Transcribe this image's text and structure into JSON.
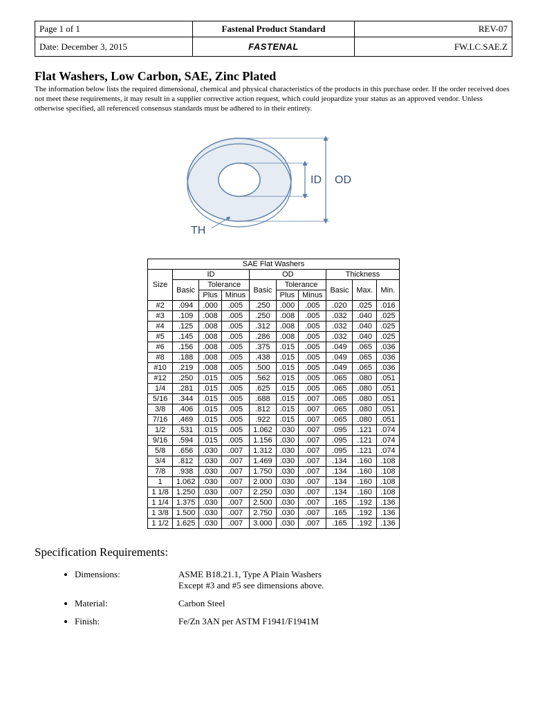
{
  "header": {
    "page": "Page 1 of 1",
    "std": "Fastenal Product Standard",
    "rev": "REV-07",
    "date": "Date: December 3, 2015",
    "logo": "FASTENAL",
    "code": "FW.LC.SAE.Z"
  },
  "title": "Flat Washers, Low Carbon, SAE, Zinc Plated",
  "intro": "The information below lists the required dimensional, chemical and physical characteristics of the products in this purchase order.  If the order received does not meet these requirements, it may result in a supplier corrective action request, which could jeopardize your status as an approved vendor.  Unless otherwise specified, all referenced consensus standards must be adhered to in their entirety.",
  "diagram": {
    "labels": {
      "id": "ID",
      "od": "OD",
      "th": "TH"
    },
    "colors": {
      "stroke": "#5b7da6",
      "fill_outer": "#e5ecf3",
      "fill_inner": "#ffffff"
    }
  },
  "table": {
    "caption": "SAE Flat Washers",
    "groups": [
      "ID",
      "OD",
      "Thickness"
    ],
    "sub": {
      "size": "Size",
      "basic": "Basic",
      "tol": "Tolerance",
      "plus": "Plus",
      "minus": "Minus",
      "max": "Max.",
      "min": "Min."
    },
    "rows": [
      {
        "s": "#2",
        "idb": ".094",
        "idp": ".000",
        "idm": ".005",
        "odb": ".250",
        "odp": ".000",
        "odm": ".005",
        "tb": ".020",
        "tx": ".025",
        "tn": ".016"
      },
      {
        "s": "#3",
        "idb": ".109",
        "idp": ".008",
        "idm": ".005",
        "odb": ".250",
        "odp": ".008",
        "odm": ".005",
        "tb": ".032",
        "tx": ".040",
        "tn": ".025"
      },
      {
        "s": "#4",
        "idb": ".125",
        "idp": ".008",
        "idm": ".005",
        "odb": ".312",
        "odp": ".008",
        "odm": ".005",
        "tb": ".032",
        "tx": ".040",
        "tn": ".025"
      },
      {
        "s": "#5",
        "idb": ".145",
        "idp": ".008",
        "idm": ".005",
        "odb": ".286",
        "odp": ".008",
        "odm": ".005",
        "tb": ".032",
        "tx": ".040",
        "tn": ".025"
      },
      {
        "s": "#6",
        "idb": ".156",
        "idp": ".008",
        "idm": ".005",
        "odb": ".375",
        "odp": ".015",
        "odm": ".005",
        "tb": ".049",
        "tx": ".065",
        "tn": ".036"
      },
      {
        "s": "#8",
        "idb": ".188",
        "idp": ".008",
        "idm": ".005",
        "odb": ".438",
        "odp": ".015",
        "odm": ".005",
        "tb": ".049",
        "tx": ".065",
        "tn": ".036"
      },
      {
        "s": "#10",
        "idb": ".219",
        "idp": ".008",
        "idm": ".005",
        "odb": ".500",
        "odp": ".015",
        "odm": ".005",
        "tb": ".049",
        "tx": ".065",
        "tn": ".036"
      },
      {
        "s": "#12",
        "idb": ".250",
        "idp": ".015",
        "idm": ".005",
        "odb": ".562",
        "odp": ".015",
        "odm": ".005",
        "tb": ".065",
        "tx": ".080",
        "tn": ".051"
      },
      {
        "s": "1/4",
        "idb": ".281",
        "idp": ".015",
        "idm": ".005",
        "odb": ".625",
        "odp": ".015",
        "odm": ".005",
        "tb": ".065",
        "tx": ".080",
        "tn": ".051"
      },
      {
        "s": "5/16",
        "idb": ".344",
        "idp": ".015",
        "idm": ".005",
        "odb": ".688",
        "odp": ".015",
        "odm": ".007",
        "tb": ".065",
        "tx": ".080",
        "tn": ".051"
      },
      {
        "s": "3/8",
        "idb": ".406",
        "idp": ".015",
        "idm": ".005",
        "odb": ".812",
        "odp": ".015",
        "odm": ".007",
        "tb": ".065",
        "tx": ".080",
        "tn": ".051"
      },
      {
        "s": "7/16",
        "idb": ".469",
        "idp": ".015",
        "idm": ".005",
        "odb": ".922",
        "odp": ".015",
        "odm": ".007",
        "tb": ".065",
        "tx": ".080",
        "tn": ".051"
      },
      {
        "s": "1/2",
        "idb": ".531",
        "idp": ".015",
        "idm": ".005",
        "odb": "1.062",
        "odp": ".030",
        "odm": ".007",
        "tb": ".095",
        "tx": ".121",
        "tn": ".074"
      },
      {
        "s": "9/16",
        "idb": ".594",
        "idp": ".015",
        "idm": ".005",
        "odb": "1.156",
        "odp": ".030",
        "odm": ".007",
        "tb": ".095",
        "tx": ".121",
        "tn": ".074"
      },
      {
        "s": "5/8",
        "idb": ".656",
        "idp": ".030",
        "idm": ".007",
        "odb": "1.312",
        "odp": ".030",
        "odm": ".007",
        "tb": ".095",
        "tx": ".121",
        "tn": ".074"
      },
      {
        "s": "3/4",
        "idb": ".812",
        "idp": ".030",
        "idm": ".007",
        "odb": "1.469",
        "odp": ".030",
        "odm": ".007",
        "tb": ".134",
        "tx": ".160",
        "tn": ".108"
      },
      {
        "s": "7/8",
        "idb": ".938",
        "idp": ".030",
        "idm": ".007",
        "odb": "1.750",
        "odp": ".030",
        "odm": ".007",
        "tb": ".134",
        "tx": ".160",
        "tn": ".108"
      },
      {
        "s": "1",
        "idb": "1.062",
        "idp": ".030",
        "idm": ".007",
        "odb": "2.000",
        "odp": ".030",
        "odm": ".007",
        "tb": ".134",
        "tx": ".160",
        "tn": ".108"
      },
      {
        "s": "1 1/8",
        "idb": "1.250",
        "idp": ".030",
        "idm": ".007",
        "odb": "2.250",
        "odp": ".030",
        "odm": ".007",
        "tb": ".134",
        "tx": ".160",
        "tn": ".108"
      },
      {
        "s": "1 1/4",
        "idb": "1.375",
        "idp": ".030",
        "idm": ".007",
        "odb": "2.500",
        "odp": ".030",
        "odm": ".007",
        "tb": ".165",
        "tx": ".192",
        "tn": ".136"
      },
      {
        "s": "1 3/8",
        "idb": "1.500",
        "idp": ".030",
        "idm": ".007",
        "odb": "2.750",
        "odp": ".030",
        "odm": ".007",
        "tb": ".165",
        "tx": ".192",
        "tn": ".136"
      },
      {
        "s": "1 1/2",
        "idb": "1.625",
        "idp": ".030",
        "idm": ".007",
        "odb": "3.000",
        "odp": ".030",
        "odm": ".007",
        "tb": ".165",
        "tx": ".192",
        "tn": ".136"
      }
    ]
  },
  "spec": {
    "heading": "Specification Requirements:",
    "items": [
      {
        "label": "Dimensions:",
        "value": "ASME B18.21.1, Type A Plain Washers\nExcept #3 and #5 see dimensions above."
      },
      {
        "label": "Material:",
        "value": "Carbon Steel"
      },
      {
        "label": "Finish:",
        "value": "Fe/Zn 3AN per ASTM F1941/F1941M"
      }
    ]
  }
}
